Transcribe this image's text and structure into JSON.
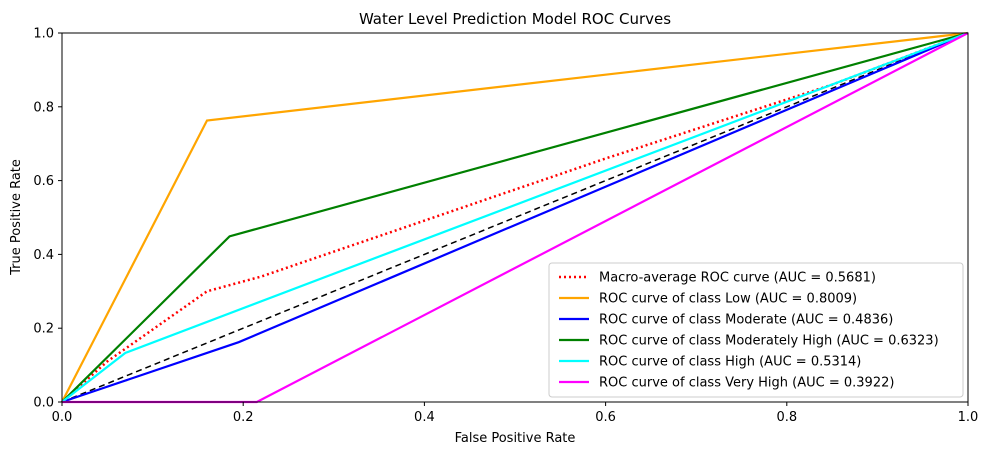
{
  "chart_data": {
    "type": "line",
    "title": "Water Level Prediction Model ROC Curves",
    "xlabel": "False Positive Rate",
    "ylabel": "True Positive Rate",
    "xlim": [
      0,
      1
    ],
    "ylim": [
      0,
      1
    ],
    "xticks": [
      "0.0",
      "0.2",
      "0.4",
      "0.6",
      "0.8",
      "1.0"
    ],
    "yticks": [
      "0.0",
      "0.2",
      "0.4",
      "0.6",
      "0.8",
      "1.0"
    ],
    "grid": false,
    "legend_position": "lower-right",
    "diagonal": {
      "x": [
        0,
        1
      ],
      "y": [
        0,
        1
      ],
      "color": "#000000",
      "style": "dashed"
    },
    "series": [
      {
        "name": "Macro-average ROC curve (AUC = 0.5681)",
        "color": "#ff0000",
        "style": "dotted",
        "x": [
          0,
          0.05,
          0.16,
          0.22,
          0.6,
          0.85,
          1
        ],
        "y": [
          0,
          0.11,
          0.3,
          0.34,
          0.66,
          0.86,
          1
        ]
      },
      {
        "name": "ROC curve of class Low (AUC = 0.8009)",
        "color": "#ffa500",
        "style": "solid",
        "x": [
          0,
          0.16,
          1
        ],
        "y": [
          0,
          0.763,
          1
        ]
      },
      {
        "name": "ROC curve of class Moderate (AUC = 0.4836)",
        "color": "#0000ff",
        "style": "solid",
        "x": [
          0,
          0.195,
          1
        ],
        "y": [
          0,
          0.162,
          1
        ]
      },
      {
        "name": "ROC curve of class Moderately High (AUC = 0.6323)",
        "color": "#008000",
        "style": "solid",
        "x": [
          0,
          0.185,
          1
        ],
        "y": [
          0,
          0.449,
          1
        ]
      },
      {
        "name": "ROC curve of class High (AUC = 0.5314)",
        "color": "#00ffff",
        "style": "solid",
        "x": [
          0,
          0.07,
          1
        ],
        "y": [
          0,
          0.133,
          1
        ]
      },
      {
        "name": "ROC curve of class Very High (AUC = 0.3922)",
        "color": "#ff00ff",
        "style": "solid",
        "x": [
          0,
          0.215,
          1
        ],
        "y": [
          0,
          0,
          1
        ]
      }
    ]
  }
}
